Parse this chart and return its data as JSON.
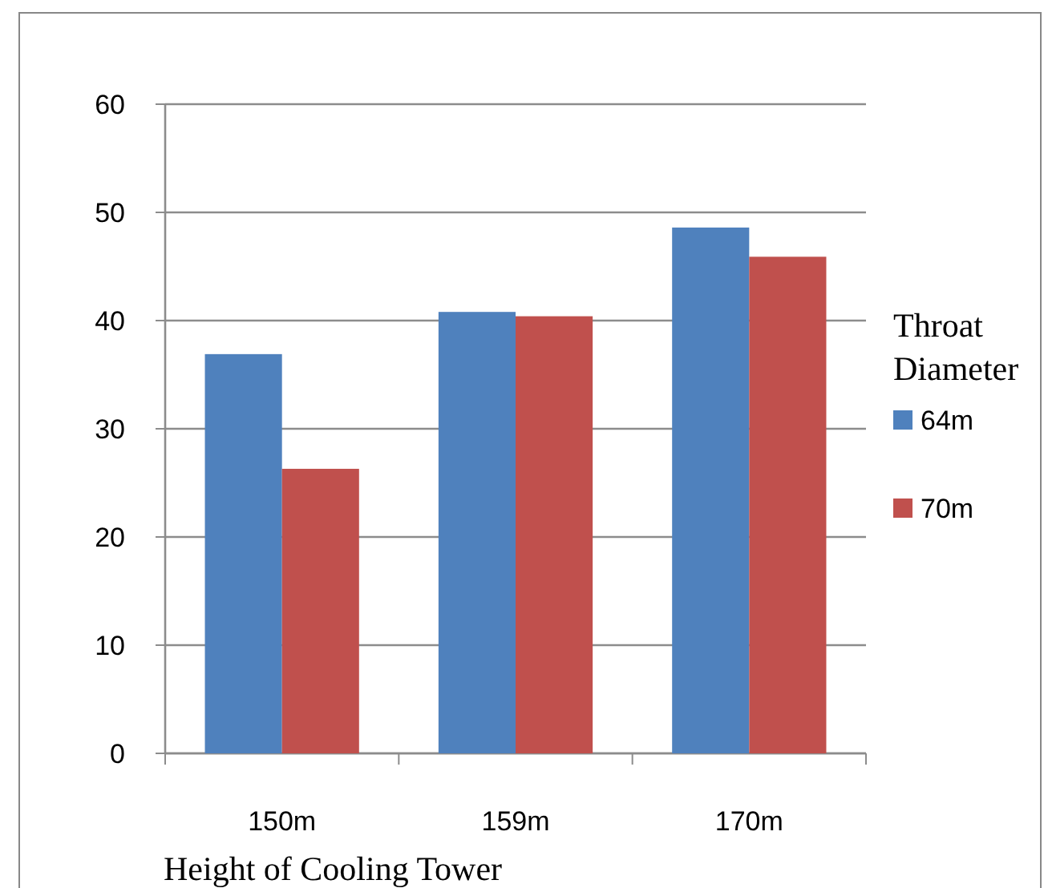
{
  "chart_data": {
    "type": "bar",
    "xlabel": "Height of Cooling Tower",
    "legend_title": "Throat Diameter",
    "categories": [
      "150m",
      "159m",
      "170m"
    ],
    "series": [
      {
        "name": "64m",
        "color": "#4f81bd",
        "values": [
          36.9,
          40.8,
          48.6
        ]
      },
      {
        "name": "70m",
        "color": "#c0504d",
        "values": [
          26.3,
          40.4,
          45.9
        ]
      }
    ],
    "ylim": [
      0,
      60
    ],
    "yticks": [
      0,
      10,
      20,
      30,
      40,
      50,
      60
    ],
    "grid": "y",
    "legend": "right"
  }
}
